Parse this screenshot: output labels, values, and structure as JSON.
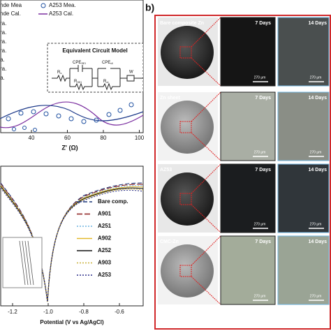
{
  "panel_a": {
    "nyquist": {
      "x_ticks": [
        "40",
        "60",
        "80",
        "100"
      ],
      "x_label": "Z' (Ω)",
      "legend": [
        "nde Mea",
        "A253 Mea.",
        "nde Cal.",
        "A253 Cal."
      ],
      "side_labels": [
        "ra.",
        "ra.",
        "ra.",
        "ra.",
        "a.",
        "ra.",
        "a."
      ],
      "inset": {
        "title": "Equivalent Circuit Model",
        "rs": "R",
        "rs_sub": "s",
        "cpe1": "CPE",
        "cpe1_sub": "SEI",
        "r1": "R",
        "r1_sub": "SEI",
        "cpe2": "CPE",
        "cpe2_sub": "dl",
        "r2": "R",
        "r2_sub": "ct",
        "w": "W"
      }
    },
    "tafel": {
      "x_ticks": [
        "-1.2",
        "-1.0",
        "-0.8",
        "-0.6"
      ],
      "x_label": "Potential (V vs Ag/AgCl)",
      "legend": [
        {
          "name": "Bare comp.",
          "color": "#1f3a7a",
          "dash": "6,3"
        },
        {
          "name": "A901",
          "color": "#8b1a1a",
          "dash": "8,3"
        },
        {
          "name": "A251",
          "color": "#6fb4e0",
          "dash": "2,2"
        },
        {
          "name": "A902",
          "color": "#e3b92b",
          "dash": "none"
        },
        {
          "name": "A252",
          "color": "#111111",
          "dash": "none"
        },
        {
          "name": "A903",
          "color": "#c9b13a",
          "dash": "2,2"
        },
        {
          "name": "A253",
          "color": "#2b2f8a",
          "dash": "2,2"
        }
      ]
    }
  },
  "panel_b": {
    "label": "b)",
    "rows": [
      {
        "sample": "Bare composite Zn",
        "d7": "7 Days",
        "d14": "14 Days",
        "s7": "270 μm",
        "s14": "270 μm"
      },
      {
        "sample": "Zn sheet",
        "d7": "7 Days",
        "d14": "14 Days",
        "s7": "270 μm",
        "s14": "270 μm"
      },
      {
        "sample": "AZ53",
        "d7": "7 Days",
        "d14": "14 Days",
        "s7": "270 μm",
        "s14": "270 μm"
      },
      {
        "sample": "CMC-Zn",
        "d7": "7 Days",
        "d14": "14 Days",
        "s7": "270 μm",
        "s14": "270 μm"
      }
    ]
  }
}
